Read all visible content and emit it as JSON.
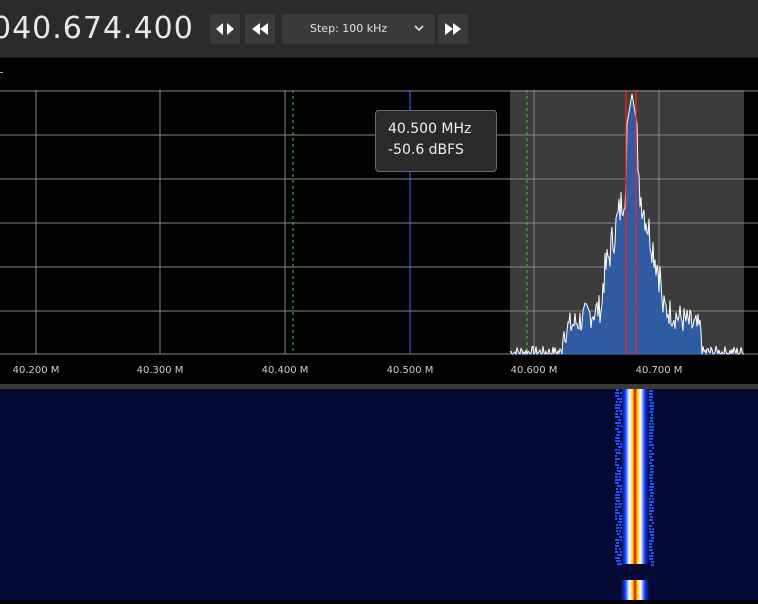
{
  "toolbar": {
    "frequency": "040.674.400",
    "step_label": "Step: 100 kHz",
    "icons": {
      "swap": "swap-arrows-icon",
      "rewind": "rewind-icon",
      "chevron": "chevron-down-icon",
      "forward": "fast-forward-icon"
    }
  },
  "spectrum": {
    "axis_labels": [
      "40.200 M",
      "40.300 M",
      "40.400 M",
      "40.500 M",
      "40.600 M",
      "40.700 M"
    ],
    "tooltip": {
      "frequency": "40.500 MHz",
      "level": "-50.6 dBFS"
    }
  },
  "colors": {
    "toolbar_bg": "#2b2b2b",
    "cursor_line": "#3a6fff",
    "vfo_marker": "#ff2020",
    "filter_bandwidth": "#3c3c3c",
    "waterfall_bg": "#030a33"
  }
}
